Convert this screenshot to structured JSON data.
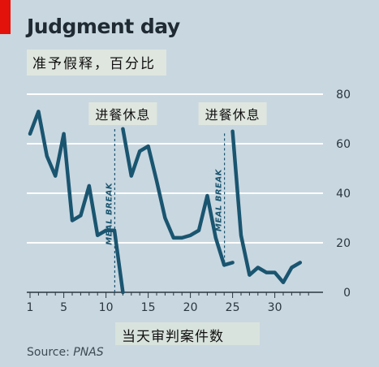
{
  "header": {
    "title": "Judgment day",
    "subtitle": "准予假释，百分比"
  },
  "footer": {
    "source_label": "Source: ",
    "source_name": "PNAS"
  },
  "chart_data": {
    "type": "line",
    "title": "Judgment day",
    "subtitle": "准予假释，百分比",
    "xlabel": "当天审判案件数",
    "ylabel": "",
    "xlim": [
      1,
      34
    ],
    "ylim": [
      0,
      80
    ],
    "xticks": [
      1,
      5,
      10,
      15,
      20,
      25,
      30
    ],
    "yticks": [
      0,
      20,
      40,
      60,
      80
    ],
    "grid": true,
    "line_color": "#1a5570",
    "segments": [
      {
        "x": [
          1,
          2,
          3,
          4,
          5,
          6,
          7,
          8,
          9,
          10,
          11,
          12
        ],
        "y": [
          64,
          73,
          55,
          47,
          64,
          29,
          31,
          43,
          23,
          25,
          25,
          0
        ]
      },
      {
        "x": [
          12,
          13,
          14,
          15,
          16,
          17,
          18,
          19,
          20,
          21,
          22,
          23,
          24,
          25
        ],
        "y": [
          66,
          47,
          57,
          59,
          45,
          30,
          22,
          22,
          23,
          25,
          39,
          22,
          11,
          12
        ]
      },
      {
        "x": [
          25,
          26,
          27,
          28,
          29,
          30,
          31,
          32,
          33
        ],
        "y": [
          65,
          23,
          7,
          10,
          8,
          8,
          4,
          10,
          12
        ]
      }
    ],
    "annotations": [
      {
        "text": "进餐休息",
        "x": 12
      },
      {
        "text": "进餐休息",
        "x": 25
      }
    ],
    "breaks": [
      {
        "label": "MEAL BREAK",
        "x": 12,
        "y_from": 0,
        "y_to": 66
      },
      {
        "label": "MEAL BREAK",
        "x": 25,
        "y_from": 12,
        "y_to": 65
      }
    ]
  }
}
